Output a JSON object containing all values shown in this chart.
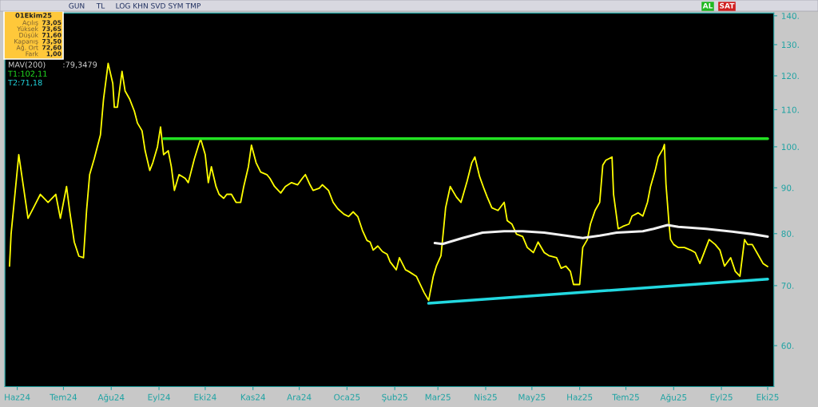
{
  "chart_data": {
    "type": "line",
    "log": true,
    "xlim": [
      "2024-05-24",
      "2025-10-05"
    ],
    "ylim": [
      54,
      141
    ],
    "xticks": [
      {
        "value": "2024-06-01",
        "label": "Haz24"
      },
      {
        "value": "2024-07-01",
        "label": "Tem24"
      },
      {
        "value": "2024-08-01",
        "label": "Ağu24"
      },
      {
        "value": "2024-09-01",
        "label": "Eyl24"
      },
      {
        "value": "2024-10-01",
        "label": "Eki24"
      },
      {
        "value": "2024-11-01",
        "label": "Kas24"
      },
      {
        "value": "2024-12-01",
        "label": "Ara24"
      },
      {
        "value": "2025-01-01",
        "label": "Oca25"
      },
      {
        "value": "2025-02-01",
        "label": "Şub25"
      },
      {
        "value": "2025-03-01",
        "label": "Mar25"
      },
      {
        "value": "2025-04-01",
        "label": "Nis25"
      },
      {
        "value": "2025-05-01",
        "label": "May25"
      },
      {
        "value": "2025-06-01",
        "label": "Haz25"
      },
      {
        "value": "2025-07-01",
        "label": "Tem25"
      },
      {
        "value": "2025-08-01",
        "label": "Ağu25"
      },
      {
        "value": "2025-09-01",
        "label": "Eyl25"
      },
      {
        "value": "2025-10-01",
        "label": "Eki25"
      }
    ],
    "yticks": [
      {
        "value": 60,
        "label": "60."
      },
      {
        "value": 70,
        "label": "70."
      },
      {
        "value": 80,
        "label": "80."
      },
      {
        "value": 90,
        "label": "90."
      },
      {
        "value": 100,
        "label": "100."
      },
      {
        "value": 110,
        "label": "110."
      },
      {
        "value": 120,
        "label": "120."
      },
      {
        "value": 130,
        "label": "130."
      },
      {
        "value": 140,
        "label": "140."
      }
    ],
    "series": [
      {
        "color": "#ffff00",
        "x": [
          "2024-05-27",
          "2024-05-28",
          "2024-06-02",
          "2024-06-05",
          "2024-06-08",
          "2024-06-12",
          "2024-06-16",
          "2024-06-21",
          "2024-06-26",
          "2024-06-29",
          "2024-07-03",
          "2024-07-05",
          "2024-07-08",
          "2024-07-11",
          "2024-07-14",
          "2024-07-16",
          "2024-07-18",
          "2024-07-21",
          "2024-07-25",
          "2024-07-27",
          "2024-07-30",
          "2024-08-02",
          "2024-08-03",
          "2024-08-05",
          "2024-08-08",
          "2024-08-10",
          "2024-08-13",
          "2024-08-16",
          "2024-08-18",
          "2024-08-21",
          "2024-08-23",
          "2024-08-26",
          "2024-08-28",
          "2024-08-31",
          "2024-09-02",
          "2024-09-04",
          "2024-09-07",
          "2024-09-09",
          "2024-09-11",
          "2024-09-14",
          "2024-09-18",
          "2024-09-20",
          "2024-09-24",
          "2024-09-28",
          "2024-10-01",
          "2024-10-03",
          "2024-10-05",
          "2024-10-08",
          "2024-10-10",
          "2024-10-13",
          "2024-10-15",
          "2024-10-18",
          "2024-10-21",
          "2024-10-24",
          "2024-10-26",
          "2024-10-29",
          "2024-10-31",
          "2024-11-03",
          "2024-11-06",
          "2024-11-10",
          "2024-11-12",
          "2024-11-15",
          "2024-11-19",
          "2024-11-22",
          "2024-11-26",
          "2024-11-30",
          "2024-12-03",
          "2024-12-05",
          "2024-12-08",
          "2024-12-10",
          "2024-12-14",
          "2024-12-16",
          "2024-12-20",
          "2024-12-23",
          "2024-12-26",
          "2024-12-30",
          "2025-01-02",
          "2025-01-05",
          "2025-01-08",
          "2025-01-11",
          "2025-01-14",
          "2025-01-16",
          "2025-01-18",
          "2025-01-21",
          "2025-01-24",
          "2025-01-27",
          "2025-01-29",
          "2025-02-02",
          "2025-02-04",
          "2025-02-08",
          "2025-02-10",
          "2025-02-15",
          "2025-02-20",
          "2025-02-23",
          "2025-02-26",
          "2025-02-28",
          "2025-03-03",
          "2025-03-05",
          "2025-03-06",
          "2025-03-09",
          "2025-03-13",
          "2025-03-16",
          "2025-03-20",
          "2025-03-23",
          "2025-03-25",
          "2025-03-28",
          "2025-03-31",
          "2025-04-02",
          "2025-04-05",
          "2025-04-09",
          "2025-04-13",
          "2025-04-15",
          "2025-04-18",
          "2025-04-21",
          "2025-04-25",
          "2025-04-28",
          "2025-05-02",
          "2025-05-05",
          "2025-05-09",
          "2025-05-12",
          "2025-05-17",
          "2025-05-20",
          "2025-05-23",
          "2025-05-26",
          "2025-05-28",
          "2025-06-01",
          "2025-06-03",
          "2025-06-06",
          "2025-06-08",
          "2025-06-11",
          "2025-06-14",
          "2025-06-16",
          "2025-06-18",
          "2025-06-22",
          "2025-06-23",
          "2025-06-26",
          "2025-06-29",
          "2025-07-03",
          "2025-07-05",
          "2025-07-09",
          "2025-07-12",
          "2025-07-15",
          "2025-07-17",
          "2025-07-20",
          "2025-07-22",
          "2025-07-25",
          "2025-07-26",
          "2025-07-27",
          "2025-07-29",
          "2025-07-30",
          "2025-08-01",
          "2025-08-04",
          "2025-08-08",
          "2025-08-12",
          "2025-08-15",
          "2025-08-18",
          "2025-08-20",
          "2025-08-24",
          "2025-08-28",
          "2025-08-31",
          "2025-09-03",
          "2025-09-07",
          "2025-09-10",
          "2025-09-13",
          "2025-09-16",
          "2025-09-18",
          "2025-09-21",
          "2025-09-24",
          "2025-09-28",
          "2025-10-01"
        ],
        "values": [
          73.6,
          79.9,
          98.0,
          90.3,
          83.2,
          85.8,
          88.5,
          86.7,
          88.5,
          83.2,
          90.3,
          84.9,
          78.3,
          75.5,
          75.2,
          84.9,
          93.1,
          97.0,
          103.1,
          113.0,
          123.9,
          117.7,
          110.7,
          110.7,
          121.4,
          115.4,
          113.0,
          109.6,
          106.3,
          104.2,
          99.0,
          94.1,
          96.0,
          100.0,
          105.2,
          98.0,
          99.0,
          95.0,
          89.4,
          93.1,
          92.2,
          91.2,
          97.0,
          102.1,
          98.0,
          91.2,
          95.0,
          90.3,
          88.5,
          87.6,
          88.5,
          88.5,
          86.7,
          86.7,
          90.3,
          95.0,
          100.4,
          96.0,
          93.7,
          93.1,
          92.2,
          90.3,
          88.8,
          90.3,
          91.2,
          90.7,
          92.2,
          93.1,
          90.7,
          89.4,
          89.9,
          90.7,
          89.4,
          86.7,
          85.3,
          84.1,
          83.6,
          84.6,
          83.6,
          80.7,
          78.6,
          78.3,
          76.7,
          77.5,
          76.4,
          75.9,
          74.4,
          72.9,
          75.2,
          72.9,
          72.6,
          71.7,
          68.8,
          67.4,
          71.7,
          73.6,
          75.6,
          82.0,
          85.5,
          90.3,
          87.9,
          86.7,
          91.6,
          96.0,
          97.4,
          92.7,
          89.7,
          87.9,
          85.5,
          84.9,
          86.7,
          82.7,
          82.0,
          79.9,
          79.4,
          77.2,
          76.2,
          78.3,
          76.2,
          75.6,
          75.2,
          73.2,
          73.6,
          72.6,
          70.2,
          70.2,
          77.2,
          78.8,
          82.0,
          84.9,
          86.7,
          95.4,
          96.6,
          97.4,
          88.5,
          81.0,
          81.5,
          82.0,
          83.7,
          84.4,
          83.7,
          86.7,
          90.3,
          94.1,
          97.4,
          99.4,
          100.6,
          90.9,
          82.0,
          78.8,
          77.8,
          77.2,
          77.2,
          76.7,
          76.2,
          74.1,
          75.6,
          78.8,
          77.8,
          76.7,
          73.6,
          75.2,
          72.6,
          71.7,
          78.8,
          77.8,
          77.8,
          76.2,
          74.1,
          73.5
        ]
      },
      {
        "name": "MAV(200)",
        "color": "#f0f0f0",
        "x": [
          "2025-02-27",
          "2025-03-04",
          "2025-03-17",
          "2025-03-30",
          "2025-04-13",
          "2025-04-25",
          "2025-05-09",
          "2025-05-23",
          "2025-06-03",
          "2025-06-14",
          "2025-06-25",
          "2025-07-12",
          "2025-07-19",
          "2025-07-28",
          "2025-08-04",
          "2025-08-22",
          "2025-09-08",
          "2025-09-21",
          "2025-10-01"
        ],
        "values": [
          78.1,
          77.9,
          79.1,
          80.2,
          80.5,
          80.5,
          80.2,
          79.6,
          79.1,
          79.6,
          80.2,
          80.5,
          81.0,
          81.8,
          81.4,
          81.0,
          80.4,
          79.9,
          79.4
        ]
      },
      {
        "name": "T1:102,11",
        "color": "#22e022",
        "x": [
          "2024-09-04",
          "2025-10-01"
        ],
        "values": [
          102.11,
          102.11
        ]
      },
      {
        "name": "T2:71,18",
        "color": "#22d8e0",
        "x": [
          "2025-02-23",
          "2025-10-01"
        ],
        "values": [
          66.9,
          71.18
        ]
      }
    ],
    "annotations": [
      ":79,3479",
      "01Ekim25",
      "Açılış",
      "73,05",
      "Yüksek",
      "73,65",
      "Düşük",
      "71,60",
      "Kapanış",
      "73,50",
      "Ağ. Ort",
      "72,60",
      "Fark",
      "1,00",
      "GUN",
      "TL",
      "LOG",
      "KHN",
      "SVD",
      "SYM",
      "TMP",
      "AL",
      "SAT"
    ]
  }
}
